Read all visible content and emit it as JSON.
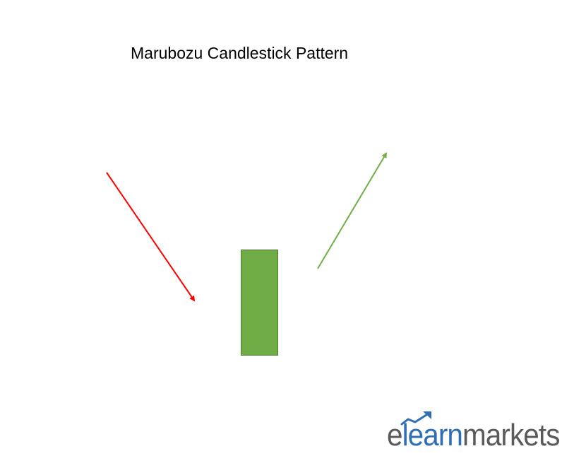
{
  "title": "Marubozu Candlestick Pattern",
  "logo": {
    "part1": "e",
    "part2": "learn",
    "part3": "markets",
    "color_dark": "#5a5a5a",
    "color_accent": "#2f6db5"
  },
  "colors": {
    "down_arrow": "#ff0000",
    "up_arrow": "#70ad47",
    "candle_fill": "#70ad47",
    "candle_border": "#507e32"
  }
}
